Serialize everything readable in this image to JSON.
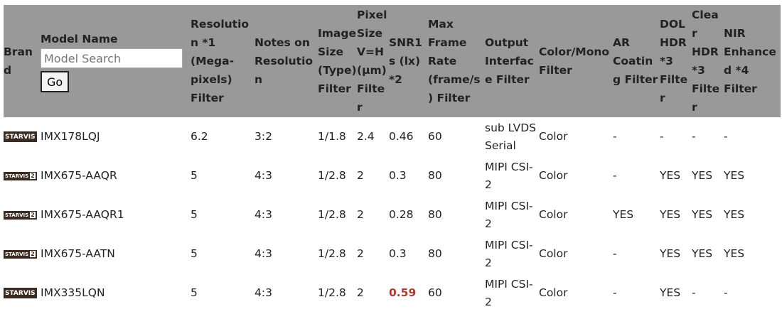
{
  "table": {
    "columns": [
      "Brand",
      "Model Name",
      "Resolution *1 (Mega-pixels) Filter",
      "Notes on Resolution",
      "Image Size (Type) Filter",
      "Pixel Size V=H (µm) Filter",
      "SNR1s (lx) *2",
      "Max Frame Rate (frame/s) Filter",
      "Output Interface Filter",
      "Color/Mono Filter",
      "AR Coating Filter",
      "DOL HDR *3 Filter",
      "Clear HDR *3 Filter",
      "NIR Enhanced *4 Filter"
    ],
    "search_placeholder": "Model Search",
    "search_button": "Go",
    "rows": [
      {
        "brand": {
          "name": "STARVIS"
        },
        "cells": [
          "IMX178LQJ",
          "6.2",
          "3:2",
          "1/1.8",
          "2.4",
          "0.46",
          "60",
          "sub LVDS Serial",
          "Color",
          "-",
          "-",
          "-",
          "-"
        ]
      },
      {
        "brand": {
          "name": "STARVIS",
          "version": "2"
        },
        "cells": [
          "IMX675-AAQR",
          "5",
          "4:3",
          "1/2.8",
          "2",
          "0.3",
          "80",
          "MIPI CSI-2",
          "Color",
          "-",
          "YES",
          "YES",
          "YES"
        ]
      },
      {
        "brand": {
          "name": "STARVIS",
          "version": "2"
        },
        "cells": [
          "IMX675-AAQR1",
          "5",
          "4:3",
          "1/2.8",
          "2",
          "0.28",
          "80",
          "MIPI CSI-2",
          "Color",
          "YES",
          "YES",
          "YES",
          "YES"
        ]
      },
      {
        "brand": {
          "name": "STARVIS",
          "version": "2"
        },
        "cells": [
          "IMX675-AATN",
          "5",
          "4:3",
          "1/2.8",
          "2",
          "0.3",
          "80",
          "MIPI CSI-2",
          "Color",
          "-",
          "YES",
          "YES",
          "YES"
        ]
      },
      {
        "brand": {
          "name": "STARVIS"
        },
        "cells": [
          "IMX335LQN",
          "5",
          "4:3",
          "1/2.8",
          "2",
          "0.59",
          "60",
          "MIPI CSI-2",
          "Color",
          "-",
          "YES",
          "-",
          "-"
        ]
      }
    ]
  }
}
